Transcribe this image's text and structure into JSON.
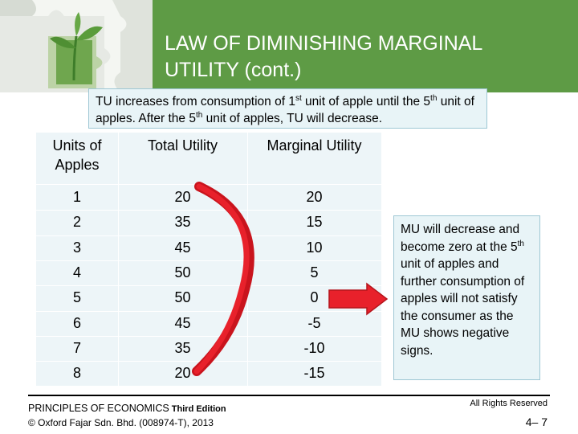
{
  "slide": {
    "title_line1": "LAW OF DIMINISHING MARGINAL",
    "title_line2": "UTILITY (cont.)",
    "callout": {
      "p1": "TU increases from consumption of 1",
      "sup1": "st",
      "p2": " unit of apple until the 5",
      "sup2": "th",
      "p3": " unit of apples. After the 5",
      "sup3": "th",
      "p4": " unit of apples, TU will decrease."
    },
    "note": {
      "p1": "MU will decrease and become zero at the 5",
      "sup": "th",
      "p2": " unit of apples and further consumption of apples will not satisfy the consumer as the MU shows negative signs."
    }
  },
  "table": {
    "headers": {
      "units_line1": "Units of",
      "units_line2": "Apples",
      "tu": "Total Utility",
      "mu": "Marginal Utility"
    },
    "rows": [
      {
        "units": "1",
        "tu": "20",
        "mu": "20"
      },
      {
        "units": "2",
        "tu": "35",
        "mu": "15"
      },
      {
        "units": "3",
        "tu": "45",
        "mu": "10"
      },
      {
        "units": "4",
        "tu": "50",
        "mu": "5"
      },
      {
        "units": "5",
        "tu": "50",
        "mu": "0"
      },
      {
        "units": "6",
        "tu": "45",
        "mu": "-5"
      },
      {
        "units": "7",
        "tu": "35",
        "mu": "-10"
      },
      {
        "units": "8",
        "tu": "20",
        "mu": "-15"
      }
    ]
  },
  "footer": {
    "book": "PRINCIPLES OF ECONOMICS",
    "edition": " Third Edition",
    "copyright": "© Oxford Fajar Sdn. Bhd. (008974-T), 2013",
    "rights": "All Rights Reserved",
    "page": "4– 7"
  },
  "colors": {
    "title_band": "#5e9b45",
    "accent_red": "#e8212b",
    "box_fill": "#e8f4f7"
  },
  "icons": {
    "photo": "puzzle-plant-image",
    "arrow": "right-arrow-icon",
    "bracket": "curved-bracket-icon"
  }
}
